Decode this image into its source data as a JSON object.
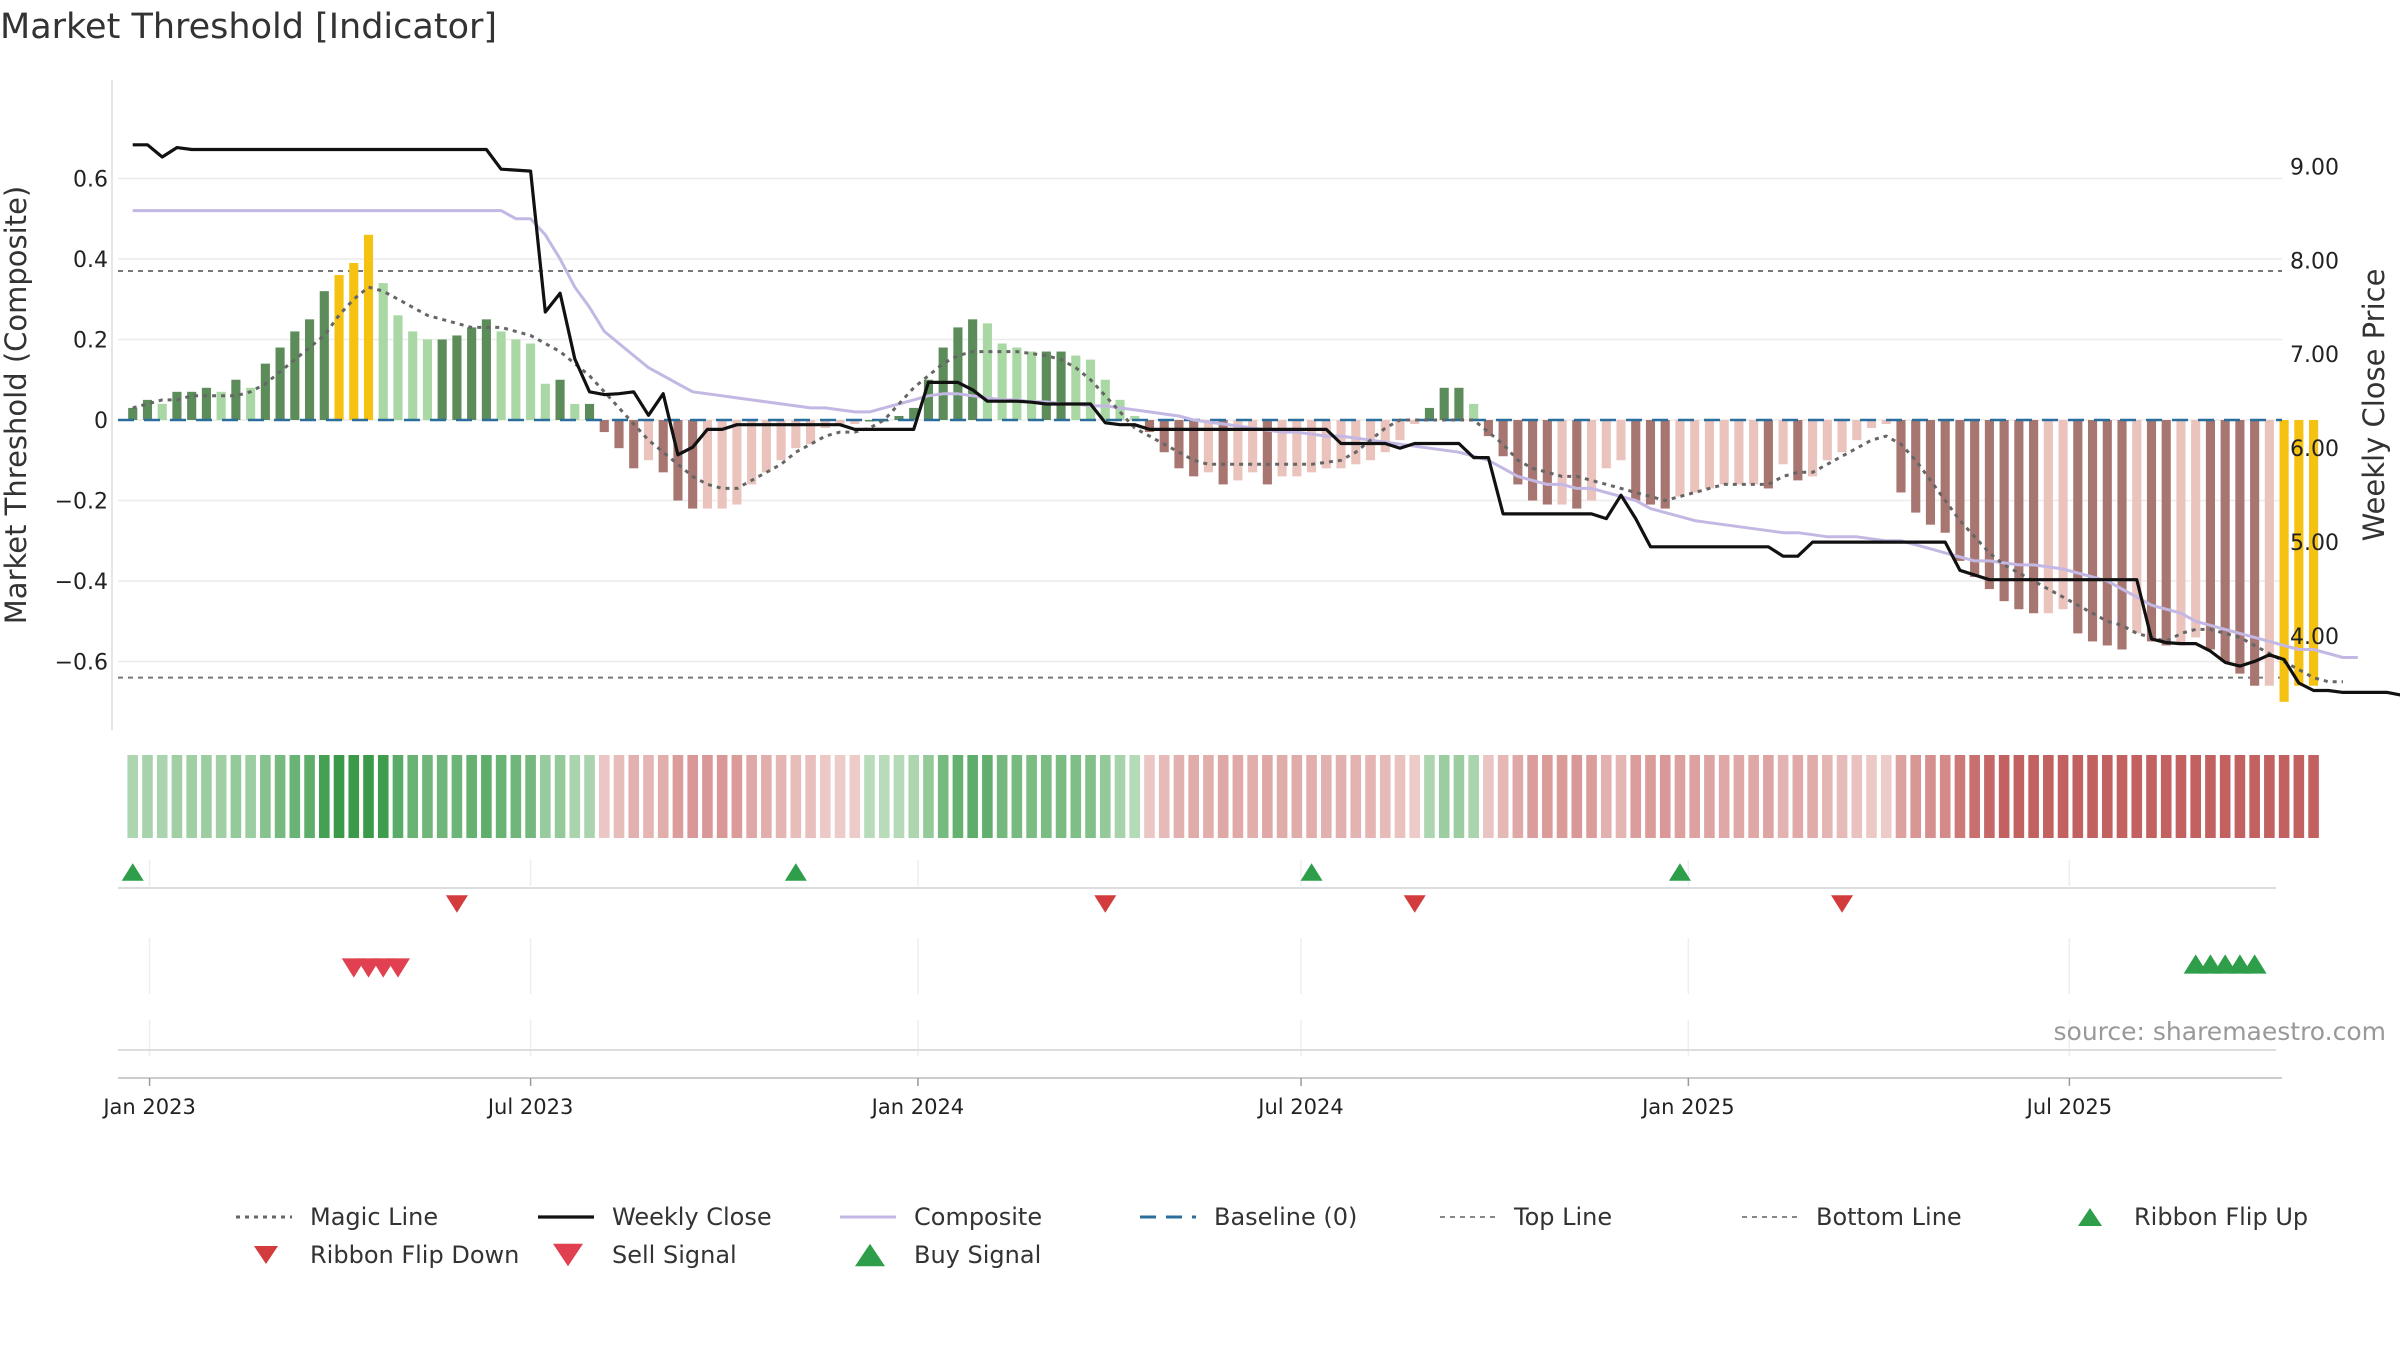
{
  "chart_data": {
    "type": "bar",
    "title": "Market Threshold [Indicator]",
    "ylabel_left": "Market Threshold (Composite)",
    "ylabel_right": "Weekly Close Price",
    "source": "source: sharemaestro.com",
    "x_ticks": [
      {
        "date": "2023-01-01",
        "label": "Jan 2023"
      },
      {
        "date": "2023-07-01",
        "label": "Jul 2023"
      },
      {
        "date": "2024-01-01",
        "label": "Jan 2024"
      },
      {
        "date": "2024-07-01",
        "label": "Jul 2024"
      },
      {
        "date": "2025-01-01",
        "label": "Jan 2025"
      },
      {
        "date": "2025-07-01",
        "label": "Jul 2025"
      }
    ],
    "x_range": [
      "2022-12-17",
      "2025-10-10"
    ],
    "left_axis": {
      "range": [
        -0.77,
        0.77
      ],
      "ticks": [
        0.6,
        0.4,
        0.2,
        0,
        -0.2,
        -0.4,
        -0.6
      ],
      "tick_labels": [
        "0.6",
        "0.4",
        "0.2",
        "0",
        "−0.2",
        "−0.4",
        "−0.6"
      ]
    },
    "right_axis": {
      "range": [
        3.0,
        9.6
      ],
      "ticks": [
        9,
        8,
        7,
        6,
        5,
        4
      ],
      "tick_labels": [
        "9.00",
        "8.00",
        "7.00",
        "6.00",
        "5.00",
        "4.00"
      ]
    },
    "top_line": 0.37,
    "bottom_line": -0.64,
    "baseline": 0,
    "composite_bars": [
      0.03,
      0.05,
      0.04,
      0.07,
      0.07,
      0.08,
      0.07,
      0.1,
      0.08,
      0.14,
      0.18,
      0.22,
      0.25,
      0.32,
      0.36,
      0.39,
      0.46,
      0.34,
      0.26,
      0.22,
      0.2,
      0.2,
      0.21,
      0.23,
      0.25,
      0.22,
      0.2,
      0.19,
      0.09,
      0.1,
      0.04,
      0.04,
      -0.03,
      -0.07,
      -0.12,
      -0.1,
      -0.13,
      -0.2,
      -0.22,
      -0.22,
      -0.22,
      -0.21,
      -0.16,
      -0.13,
      -0.1,
      -0.07,
      -0.06,
      -0.02,
      -0.01,
      -0.01,
      0.0,
      0.0,
      0.01,
      0.03,
      0.1,
      0.18,
      0.23,
      0.25,
      0.24,
      0.19,
      0.18,
      0.17,
      0.17,
      0.17,
      0.16,
      0.15,
      0.1,
      0.05,
      0.01,
      -0.03,
      -0.08,
      -0.12,
      -0.14,
      -0.13,
      -0.16,
      -0.15,
      -0.13,
      -0.16,
      -0.14,
      -0.14,
      -0.13,
      -0.12,
      -0.12,
      -0.11,
      -0.1,
      -0.08,
      -0.05,
      -0.01,
      0.03,
      0.08,
      0.08,
      0.04,
      -0.04,
      -0.09,
      -0.16,
      -0.2,
      -0.21,
      -0.21,
      -0.22,
      -0.2,
      -0.12,
      -0.1,
      -0.2,
      -0.21,
      -0.22,
      -0.19,
      -0.18,
      -0.17,
      -0.16,
      -0.16,
      -0.16,
      -0.17,
      -0.11,
      -0.15,
      -0.14,
      -0.1,
      -0.08,
      -0.05,
      -0.02,
      -0.01,
      -0.18,
      -0.23,
      -0.26,
      -0.28,
      -0.35,
      -0.39,
      -0.42,
      -0.45,
      -0.47,
      -0.48,
      -0.48,
      -0.47,
      -0.53,
      -0.55,
      -0.56,
      -0.57,
      -0.53,
      -0.55,
      -0.56,
      -0.56,
      -0.54,
      -0.57,
      -0.6,
      -0.63,
      -0.66,
      -0.66,
      -0.7,
      -0.66,
      -0.66
    ],
    "bar_highlight_indices": [
      14,
      15,
      16,
      146,
      147,
      148,
      149,
      150
    ],
    "weekly_close": [
      9.23,
      9.23,
      9.1,
      9.2,
      9.18,
      9.18,
      9.18,
      9.18,
      9.18,
      9.18,
      9.18,
      9.18,
      9.18,
      9.18,
      9.18,
      9.18,
      9.18,
      9.18,
      9.18,
      9.18,
      9.18,
      9.18,
      9.18,
      9.18,
      9.18,
      8.97,
      8.96,
      8.95,
      7.45,
      7.65,
      6.95,
      6.6,
      6.57,
      6.58,
      6.6,
      6.35,
      6.58,
      5.93,
      6.01,
      6.2,
      6.2,
      6.25,
      6.25,
      6.25,
      6.25,
      6.25,
      6.25,
      6.25,
      6.25,
      6.2,
      6.2,
      6.2,
      6.2,
      6.2,
      6.7,
      6.7,
      6.7,
      6.62,
      6.5,
      6.5,
      6.5,
      6.49,
      6.47,
      6.47,
      6.47,
      6.47,
      6.27,
      6.25,
      6.25,
      6.2,
      6.2,
      6.2,
      6.2,
      6.2,
      6.2,
      6.2,
      6.2,
      6.2,
      6.2,
      6.2,
      6.2,
      6.2,
      6.05,
      6.05,
      6.05,
      6.05,
      6.0,
      6.05,
      6.05,
      6.05,
      6.05,
      5.9,
      5.9,
      5.3,
      5.3,
      5.3,
      5.3,
      5.3,
      5.3,
      5.3,
      5.25,
      5.5,
      5.25,
      4.95,
      4.95,
      4.95,
      4.95,
      4.95,
      4.95,
      4.95,
      4.95,
      4.95,
      4.85,
      4.85,
      5.0,
      5.0,
      5.0,
      5.0,
      5.0,
      5.0,
      5.0,
      5.0,
      5.0,
      5.0,
      4.7,
      4.65,
      4.6,
      4.6,
      4.6,
      4.6,
      4.6,
      4.6,
      4.6,
      4.6,
      4.6,
      4.6,
      4.6,
      3.97,
      3.93,
      3.92,
      3.92,
      3.84,
      3.72,
      3.68,
      3.73,
      3.8,
      3.75,
      3.5,
      3.42,
      3.42,
      3.4,
      3.4,
      3.4,
      3.4,
      3.37
    ],
    "composite_line": [
      0.52,
      0.52,
      0.52,
      0.52,
      0.52,
      0.52,
      0.52,
      0.52,
      0.52,
      0.52,
      0.52,
      0.52,
      0.52,
      0.52,
      0.52,
      0.52,
      0.52,
      0.52,
      0.52,
      0.52,
      0.52,
      0.52,
      0.52,
      0.52,
      0.52,
      0.52,
      0.5,
      0.5,
      0.46,
      0.4,
      0.33,
      0.28,
      0.22,
      0.19,
      0.16,
      0.13,
      0.11,
      0.09,
      0.07,
      0.065,
      0.06,
      0.055,
      0.05,
      0.045,
      0.04,
      0.035,
      0.03,
      0.03,
      0.025,
      0.02,
      0.02,
      0.03,
      0.04,
      0.05,
      0.06,
      0.065,
      0.065,
      0.06,
      0.055,
      0.05,
      0.05,
      0.045,
      0.045,
      0.04,
      0.04,
      0.035,
      0.035,
      0.03,
      0.025,
      0.02,
      0.015,
      0.01,
      0.0,
      -0.005,
      -0.01,
      -0.015,
      -0.02,
      -0.025,
      -0.03,
      -0.03,
      -0.035,
      -0.04,
      -0.04,
      -0.045,
      -0.05,
      -0.055,
      -0.06,
      -0.065,
      -0.07,
      -0.075,
      -0.08,
      -0.09,
      -0.1,
      -0.12,
      -0.14,
      -0.15,
      -0.16,
      -0.16,
      -0.17,
      -0.17,
      -0.18,
      -0.19,
      -0.2,
      -0.22,
      -0.23,
      -0.24,
      -0.25,
      -0.255,
      -0.26,
      -0.265,
      -0.27,
      -0.275,
      -0.28,
      -0.28,
      -0.285,
      -0.29,
      -0.29,
      -0.29,
      -0.295,
      -0.3,
      -0.3,
      -0.31,
      -0.32,
      -0.33,
      -0.34,
      -0.35,
      -0.35,
      -0.355,
      -0.36,
      -0.36,
      -0.365,
      -0.37,
      -0.38,
      -0.39,
      -0.4,
      -0.42,
      -0.44,
      -0.46,
      -0.47,
      -0.48,
      -0.5,
      -0.51,
      -0.52,
      -0.53,
      -0.54,
      -0.55,
      -0.56,
      -0.57,
      -0.57,
      -0.58,
      -0.59,
      -0.59
    ],
    "magic_line": [
      0.03,
      0.04,
      0.05,
      0.05,
      0.06,
      0.06,
      0.06,
      0.06,
      0.07,
      0.09,
      0.12,
      0.15,
      0.18,
      0.21,
      0.26,
      0.3,
      0.33,
      0.32,
      0.3,
      0.28,
      0.26,
      0.25,
      0.24,
      0.23,
      0.23,
      0.23,
      0.22,
      0.21,
      0.19,
      0.17,
      0.14,
      0.11,
      0.07,
      0.03,
      -0.01,
      -0.05,
      -0.08,
      -0.11,
      -0.14,
      -0.16,
      -0.17,
      -0.17,
      -0.15,
      -0.13,
      -0.11,
      -0.08,
      -0.06,
      -0.04,
      -0.03,
      -0.03,
      -0.02,
      0.0,
      0.04,
      0.08,
      0.11,
      0.14,
      0.16,
      0.17,
      0.17,
      0.17,
      0.17,
      0.165,
      0.16,
      0.15,
      0.13,
      0.1,
      0.06,
      0.02,
      -0.02,
      -0.04,
      -0.06,
      -0.08,
      -0.1,
      -0.11,
      -0.11,
      -0.11,
      -0.11,
      -0.11,
      -0.11,
      -0.11,
      -0.11,
      -0.105,
      -0.1,
      -0.08,
      -0.05,
      -0.02,
      0.0,
      0.0,
      0.0,
      0.0,
      0.0,
      0.0,
      -0.03,
      -0.06,
      -0.1,
      -0.12,
      -0.13,
      -0.14,
      -0.14,
      -0.15,
      -0.16,
      -0.17,
      -0.18,
      -0.19,
      -0.2,
      -0.19,
      -0.18,
      -0.17,
      -0.16,
      -0.16,
      -0.16,
      -0.16,
      -0.14,
      -0.13,
      -0.13,
      -0.11,
      -0.09,
      -0.07,
      -0.05,
      -0.04,
      -0.06,
      -0.1,
      -0.15,
      -0.2,
      -0.25,
      -0.29,
      -0.33,
      -0.36,
      -0.38,
      -0.4,
      -0.42,
      -0.44,
      -0.46,
      -0.48,
      -0.5,
      -0.51,
      -0.53,
      -0.54,
      -0.55,
      -0.53,
      -0.52,
      -0.52,
      -0.53,
      -0.54,
      -0.56,
      -0.58,
      -0.6,
      -0.62,
      -0.64,
      -0.65,
      -0.65
    ],
    "ribbon_flip_up_dates": [
      "2022-12-24",
      "2023-11-04",
      "2024-07-06",
      "2024-12-28"
    ],
    "ribbon_flip_down_dates": [
      "2023-05-27",
      "2024-03-30",
      "2024-08-24",
      "2025-03-15"
    ],
    "sell_signal_dates": [
      "2023-04-08",
      "2023-04-15",
      "2023-04-22",
      "2023-04-29"
    ],
    "buy_signal_dates": [
      "2025-08-30",
      "2025-09-06",
      "2025-09-13",
      "2025-09-20",
      "2025-09-27"
    ],
    "legend": [
      {
        "key": "magic",
        "label": "Magic Line"
      },
      {
        "key": "close",
        "label": "Weekly Close"
      },
      {
        "key": "composite",
        "label": "Composite"
      },
      {
        "key": "baseline",
        "label": "Baseline (0)"
      },
      {
        "key": "top",
        "label": "Top Line"
      },
      {
        "key": "bottom",
        "label": "Bottom Line"
      },
      {
        "key": "flipup",
        "label": "Ribbon Flip Up"
      },
      {
        "key": "flipdown",
        "label": "Ribbon Flip Down"
      },
      {
        "key": "sell",
        "label": "Sell Signal"
      },
      {
        "key": "buy",
        "label": "Buy Signal"
      }
    ],
    "colors": {
      "bar_green_dark": "#5b8c5a",
      "bar_green_light": "#a9d8a4",
      "bar_red_dark": "#a87670",
      "bar_red_light": "#ebc3bd",
      "bar_highlight": "#f5c211",
      "weekly_close": "#111111",
      "composite": "#c3b8e3",
      "magic": "#666666",
      "baseline": "#2c6e9b",
      "flip_up": "#2e9e4a",
      "flip_down": "#d23c3c",
      "sell": "#e04050",
      "buy": "#2e9e4a"
    }
  }
}
